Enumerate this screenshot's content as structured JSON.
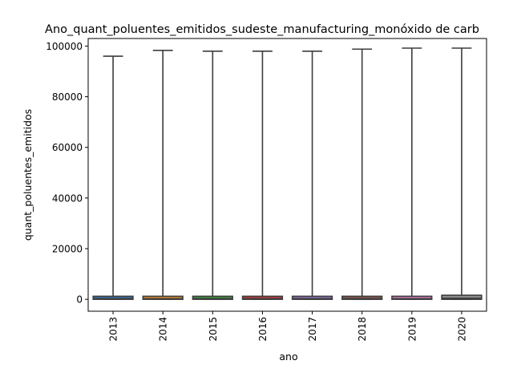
{
  "chart_data": {
    "type": "box",
    "title": "Ano_quant_poluentes_emitidos_sudeste_manufacturing_monóxido de carb",
    "xlabel": "ano",
    "ylabel": "quant_poluentes_emitidos",
    "categories": [
      "2013",
      "2014",
      "2015",
      "2016",
      "2017",
      "2018",
      "2019",
      "2020"
    ],
    "colors": [
      "#3a6f9f",
      "#d88a2e",
      "#3f8f3f",
      "#c0393b",
      "#8a6fb0",
      "#8b5a4c",
      "#d07ab8",
      "#8c8c8c"
    ],
    "boxes": [
      {
        "min": 0,
        "q1": 0,
        "median": 250,
        "q3": 1200,
        "max": 96000
      },
      {
        "min": 0,
        "q1": 0,
        "median": 250,
        "q3": 1200,
        "max": 98300
      },
      {
        "min": 0,
        "q1": 0,
        "median": 250,
        "q3": 1200,
        "max": 98000
      },
      {
        "min": 0,
        "q1": 0,
        "median": 250,
        "q3": 1200,
        "max": 98000
      },
      {
        "min": 0,
        "q1": 0,
        "median": 250,
        "q3": 1200,
        "max": 98000
      },
      {
        "min": 0,
        "q1": 0,
        "median": 250,
        "q3": 1200,
        "max": 98800
      },
      {
        "min": 0,
        "q1": 0,
        "median": 250,
        "q3": 1200,
        "max": 99200
      },
      {
        "min": 0,
        "q1": 0,
        "median": 400,
        "q3": 1600,
        "max": 99200
      }
    ],
    "ylim": [
      -4700,
      103000
    ],
    "yticks": [
      0,
      20000,
      40000,
      60000,
      80000,
      100000
    ],
    "ytick_labels": [
      "0",
      "20000",
      "40000",
      "60000",
      "80000",
      "100000"
    ],
    "xtick_rotation": 90,
    "grid": false,
    "legend": "none"
  }
}
